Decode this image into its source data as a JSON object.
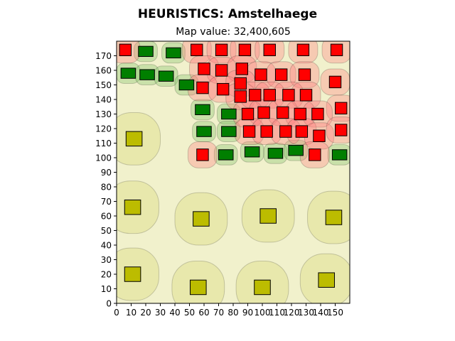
{
  "chart_data": {
    "type": "scatter",
    "title": "HEURISTICS: Amstelhaege",
    "subtitle": "Map value: 32,400,605",
    "xlim": [
      0,
      160
    ],
    "ylim": [
      0,
      180
    ],
    "xticks": [
      "0",
      "10",
      "20",
      "30",
      "40",
      "50",
      "60",
      "70",
      "80",
      "90",
      "100",
      "110",
      "120",
      "130",
      "140",
      "150"
    ],
    "yticks": [
      "0",
      "10",
      "20",
      "30",
      "40",
      "50",
      "60",
      "70",
      "80",
      "90",
      "100",
      "110",
      "120",
      "130",
      "140",
      "150",
      "160",
      "170"
    ],
    "grid": false,
    "background_color": "#f1f1cc",
    "series": [
      {
        "color": "#bcbc00",
        "zone_color": "#d8d870",
        "zone_half_width": 18,
        "zone_half_height": 18,
        "zone_radius": 16,
        "marker_w": 11,
        "marker_h": 10,
        "points": [
          [
            12,
            113
          ],
          [
            11,
            66
          ],
          [
            11,
            20
          ],
          [
            58,
            58
          ],
          [
            56,
            11
          ],
          [
            104,
            60
          ],
          [
            100,
            11
          ],
          [
            149,
            59
          ],
          [
            144,
            16
          ]
        ]
      },
      {
        "color": "#007f00",
        "zone_color": "#7fbf66",
        "zone_half_width": 8,
        "zone_half_height": 7,
        "zone_radius": 5,
        "marker_w": 10,
        "marker_h": 7,
        "points": [
          [
            20,
            173
          ],
          [
            39,
            172
          ],
          [
            8,
            158
          ],
          [
            21,
            157
          ],
          [
            34,
            156
          ],
          [
            48,
            150
          ],
          [
            59,
            133
          ],
          [
            60,
            118
          ],
          [
            77,
            130
          ],
          [
            77,
            118
          ],
          [
            75,
            102
          ],
          [
            93,
            104
          ],
          [
            109,
            103
          ],
          [
            123,
            105
          ],
          [
            153,
            102
          ]
        ]
      },
      {
        "color": "#ff0000",
        "zone_color": "#ff8080",
        "zone_half_width": 10,
        "zone_half_height": 9,
        "zone_radius": 7,
        "marker_w": 8,
        "marker_h": 8,
        "points": [
          [
            6,
            174
          ],
          [
            55,
            174
          ],
          [
            72,
            174
          ],
          [
            88,
            174
          ],
          [
            105,
            174
          ],
          [
            128,
            174
          ],
          [
            151,
            174
          ],
          [
            60,
            161
          ],
          [
            72,
            160
          ],
          [
            86,
            161
          ],
          [
            99,
            157
          ],
          [
            113,
            157
          ],
          [
            129,
            157
          ],
          [
            150,
            152
          ],
          [
            59,
            148
          ],
          [
            73,
            147
          ],
          [
            85,
            151
          ],
          [
            85,
            142
          ],
          [
            95,
            143
          ],
          [
            105,
            143
          ],
          [
            118,
            143
          ],
          [
            130,
            143
          ],
          [
            154,
            134
          ],
          [
            90,
            130
          ],
          [
            101,
            131
          ],
          [
            114,
            131
          ],
          [
            126,
            130
          ],
          [
            138,
            130
          ],
          [
            91,
            118
          ],
          [
            103,
            118
          ],
          [
            116,
            118
          ],
          [
            127,
            118
          ],
          [
            139,
            115
          ],
          [
            154,
            119
          ],
          [
            59,
            102
          ],
          [
            136,
            102
          ]
        ]
      }
    ]
  }
}
